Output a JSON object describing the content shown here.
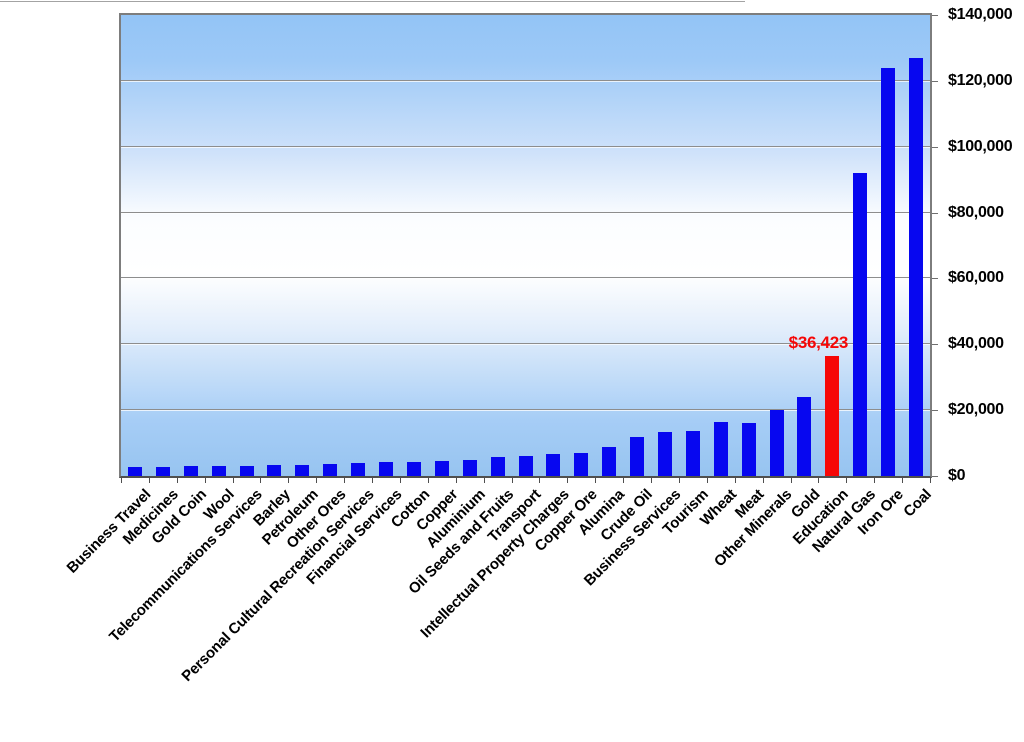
{
  "page": {
    "background_color": "#ffffff",
    "description_colors": {
      "bar_blue": "#0707f0",
      "highlight_red": "#f60707",
      "highlight_text_red": "#f60707",
      "gridline_gray": "#8d8d8d",
      "plot_border_gray": "#7d7d7d",
      "axis_text_black": "#000000"
    }
  },
  "chart_data": {
    "type": "bar",
    "title": "",
    "xlabel": "",
    "ylabel": "",
    "legend": "none",
    "grid": true,
    "y_axis_side": "right",
    "ylim": [
      0,
      140000
    ],
    "y_tick_step": 20000,
    "y_tick_labels": [
      "$0",
      "$20,000",
      "$40,000",
      "$60,000",
      "$80,000",
      "$100,000",
      "$120,000",
      "$140,000"
    ],
    "plot_bg_gradient": [
      "#93c4f6",
      "#ffffff",
      "#97c4f0"
    ],
    "categories": [
      "Business Travel",
      "Medicines",
      "Gold Coin",
      "Wool",
      "Telecommunications Services",
      "Barley",
      "Petroleum",
      "Other Ores",
      "Personal Cultural Recreation Services",
      "Financial Services",
      "Cotton",
      "Copper",
      "Aluminium",
      "Oil Seeds and Fruits",
      "Transport",
      "Intellectual Property Charges",
      "Copper Ore",
      "Alumina",
      "Crude Oil",
      "Business Services",
      "Tourism",
      "Wheat",
      "Meat",
      "Other Minerals",
      "Gold",
      "Education",
      "Natural Gas",
      "Iron Ore",
      "Coal"
    ],
    "values": [
      2600,
      2700,
      2900,
      3000,
      3100,
      3300,
      3400,
      3600,
      3900,
      4300,
      4400,
      4700,
      5000,
      5700,
      6200,
      6600,
      6900,
      8700,
      11700,
      13300,
      13700,
      16300,
      16200,
      20000,
      24000,
      36423,
      92000,
      124000,
      127000
    ],
    "bar_color": "#0707f0",
    "highlight": {
      "index": 25,
      "category": "Education",
      "value": 36423,
      "label": "$36,423",
      "color": "#f60707"
    }
  }
}
